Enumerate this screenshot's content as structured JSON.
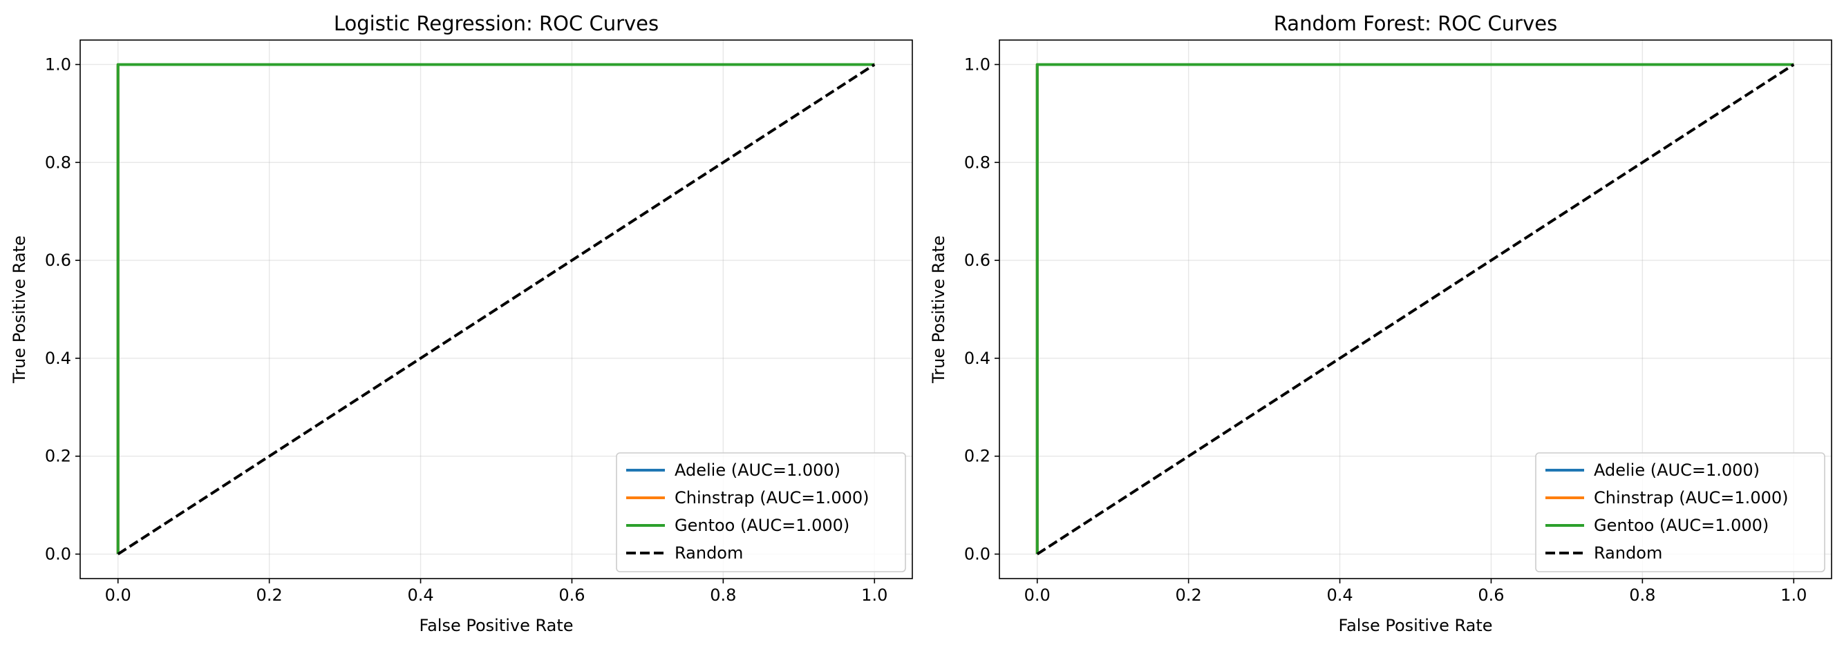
{
  "chart_data": [
    {
      "type": "line",
      "title": "Logistic Regression: ROC Curves",
      "xlabel": "False Positive Rate",
      "ylabel": "True Positive Rate",
      "xlim": [
        -0.05,
        1.05
      ],
      "ylim": [
        -0.05,
        1.05
      ],
      "xticks": [
        0.0,
        0.2,
        0.4,
        0.6,
        0.8,
        1.0
      ],
      "yticks": [
        0.0,
        0.2,
        0.4,
        0.6,
        0.8,
        1.0
      ],
      "xtick_labels": [
        "0.0",
        "0.2",
        "0.4",
        "0.6",
        "0.8",
        "1.0"
      ],
      "ytick_labels": [
        "0.0",
        "0.2",
        "0.4",
        "0.6",
        "0.8",
        "1.0"
      ],
      "grid": true,
      "legend_position": "lower-right",
      "series": [
        {
          "name": "Adelie (AUC=1.000)",
          "color": "#1f77b4",
          "dash": "solid",
          "x": [
            0.0,
            0.0,
            1.0
          ],
          "y": [
            0.0,
            1.0,
            1.0
          ]
        },
        {
          "name": "Chinstrap (AUC=1.000)",
          "color": "#ff7f0e",
          "dash": "solid",
          "x": [
            0.0,
            0.0,
            1.0
          ],
          "y": [
            0.0,
            1.0,
            1.0
          ]
        },
        {
          "name": "Gentoo (AUC=1.000)",
          "color": "#2ca02c",
          "dash": "solid",
          "x": [
            0.0,
            0.0,
            1.0
          ],
          "y": [
            0.0,
            1.0,
            1.0
          ]
        },
        {
          "name": "Random",
          "color": "#000000",
          "dash": "dashed",
          "x": [
            0.0,
            1.0
          ],
          "y": [
            0.0,
            1.0
          ]
        }
      ]
    },
    {
      "type": "line",
      "title": "Random Forest: ROC Curves",
      "xlabel": "False Positive Rate",
      "ylabel": "True Positive Rate",
      "xlim": [
        -0.05,
        1.05
      ],
      "ylim": [
        -0.05,
        1.05
      ],
      "xticks": [
        0.0,
        0.2,
        0.4,
        0.6,
        0.8,
        1.0
      ],
      "yticks": [
        0.0,
        0.2,
        0.4,
        0.6,
        0.8,
        1.0
      ],
      "xtick_labels": [
        "0.0",
        "0.2",
        "0.4",
        "0.6",
        "0.8",
        "1.0"
      ],
      "ytick_labels": [
        "0.0",
        "0.2",
        "0.4",
        "0.6",
        "0.8",
        "1.0"
      ],
      "grid": true,
      "legend_position": "lower-right",
      "series": [
        {
          "name": "Adelie (AUC=1.000)",
          "color": "#1f77b4",
          "dash": "solid",
          "x": [
            0.0,
            0.0,
            1.0
          ],
          "y": [
            0.0,
            1.0,
            1.0
          ]
        },
        {
          "name": "Chinstrap (AUC=1.000)",
          "color": "#ff7f0e",
          "dash": "solid",
          "x": [
            0.0,
            0.0,
            1.0
          ],
          "y": [
            0.0,
            1.0,
            1.0
          ]
        },
        {
          "name": "Gentoo (AUC=1.000)",
          "color": "#2ca02c",
          "dash": "solid",
          "x": [
            0.0,
            0.0,
            1.0
          ],
          "y": [
            0.0,
            1.0,
            1.0
          ]
        },
        {
          "name": "Random",
          "color": "#000000",
          "dash": "dashed",
          "x": [
            0.0,
            1.0
          ],
          "y": [
            0.0,
            1.0
          ]
        }
      ]
    }
  ]
}
